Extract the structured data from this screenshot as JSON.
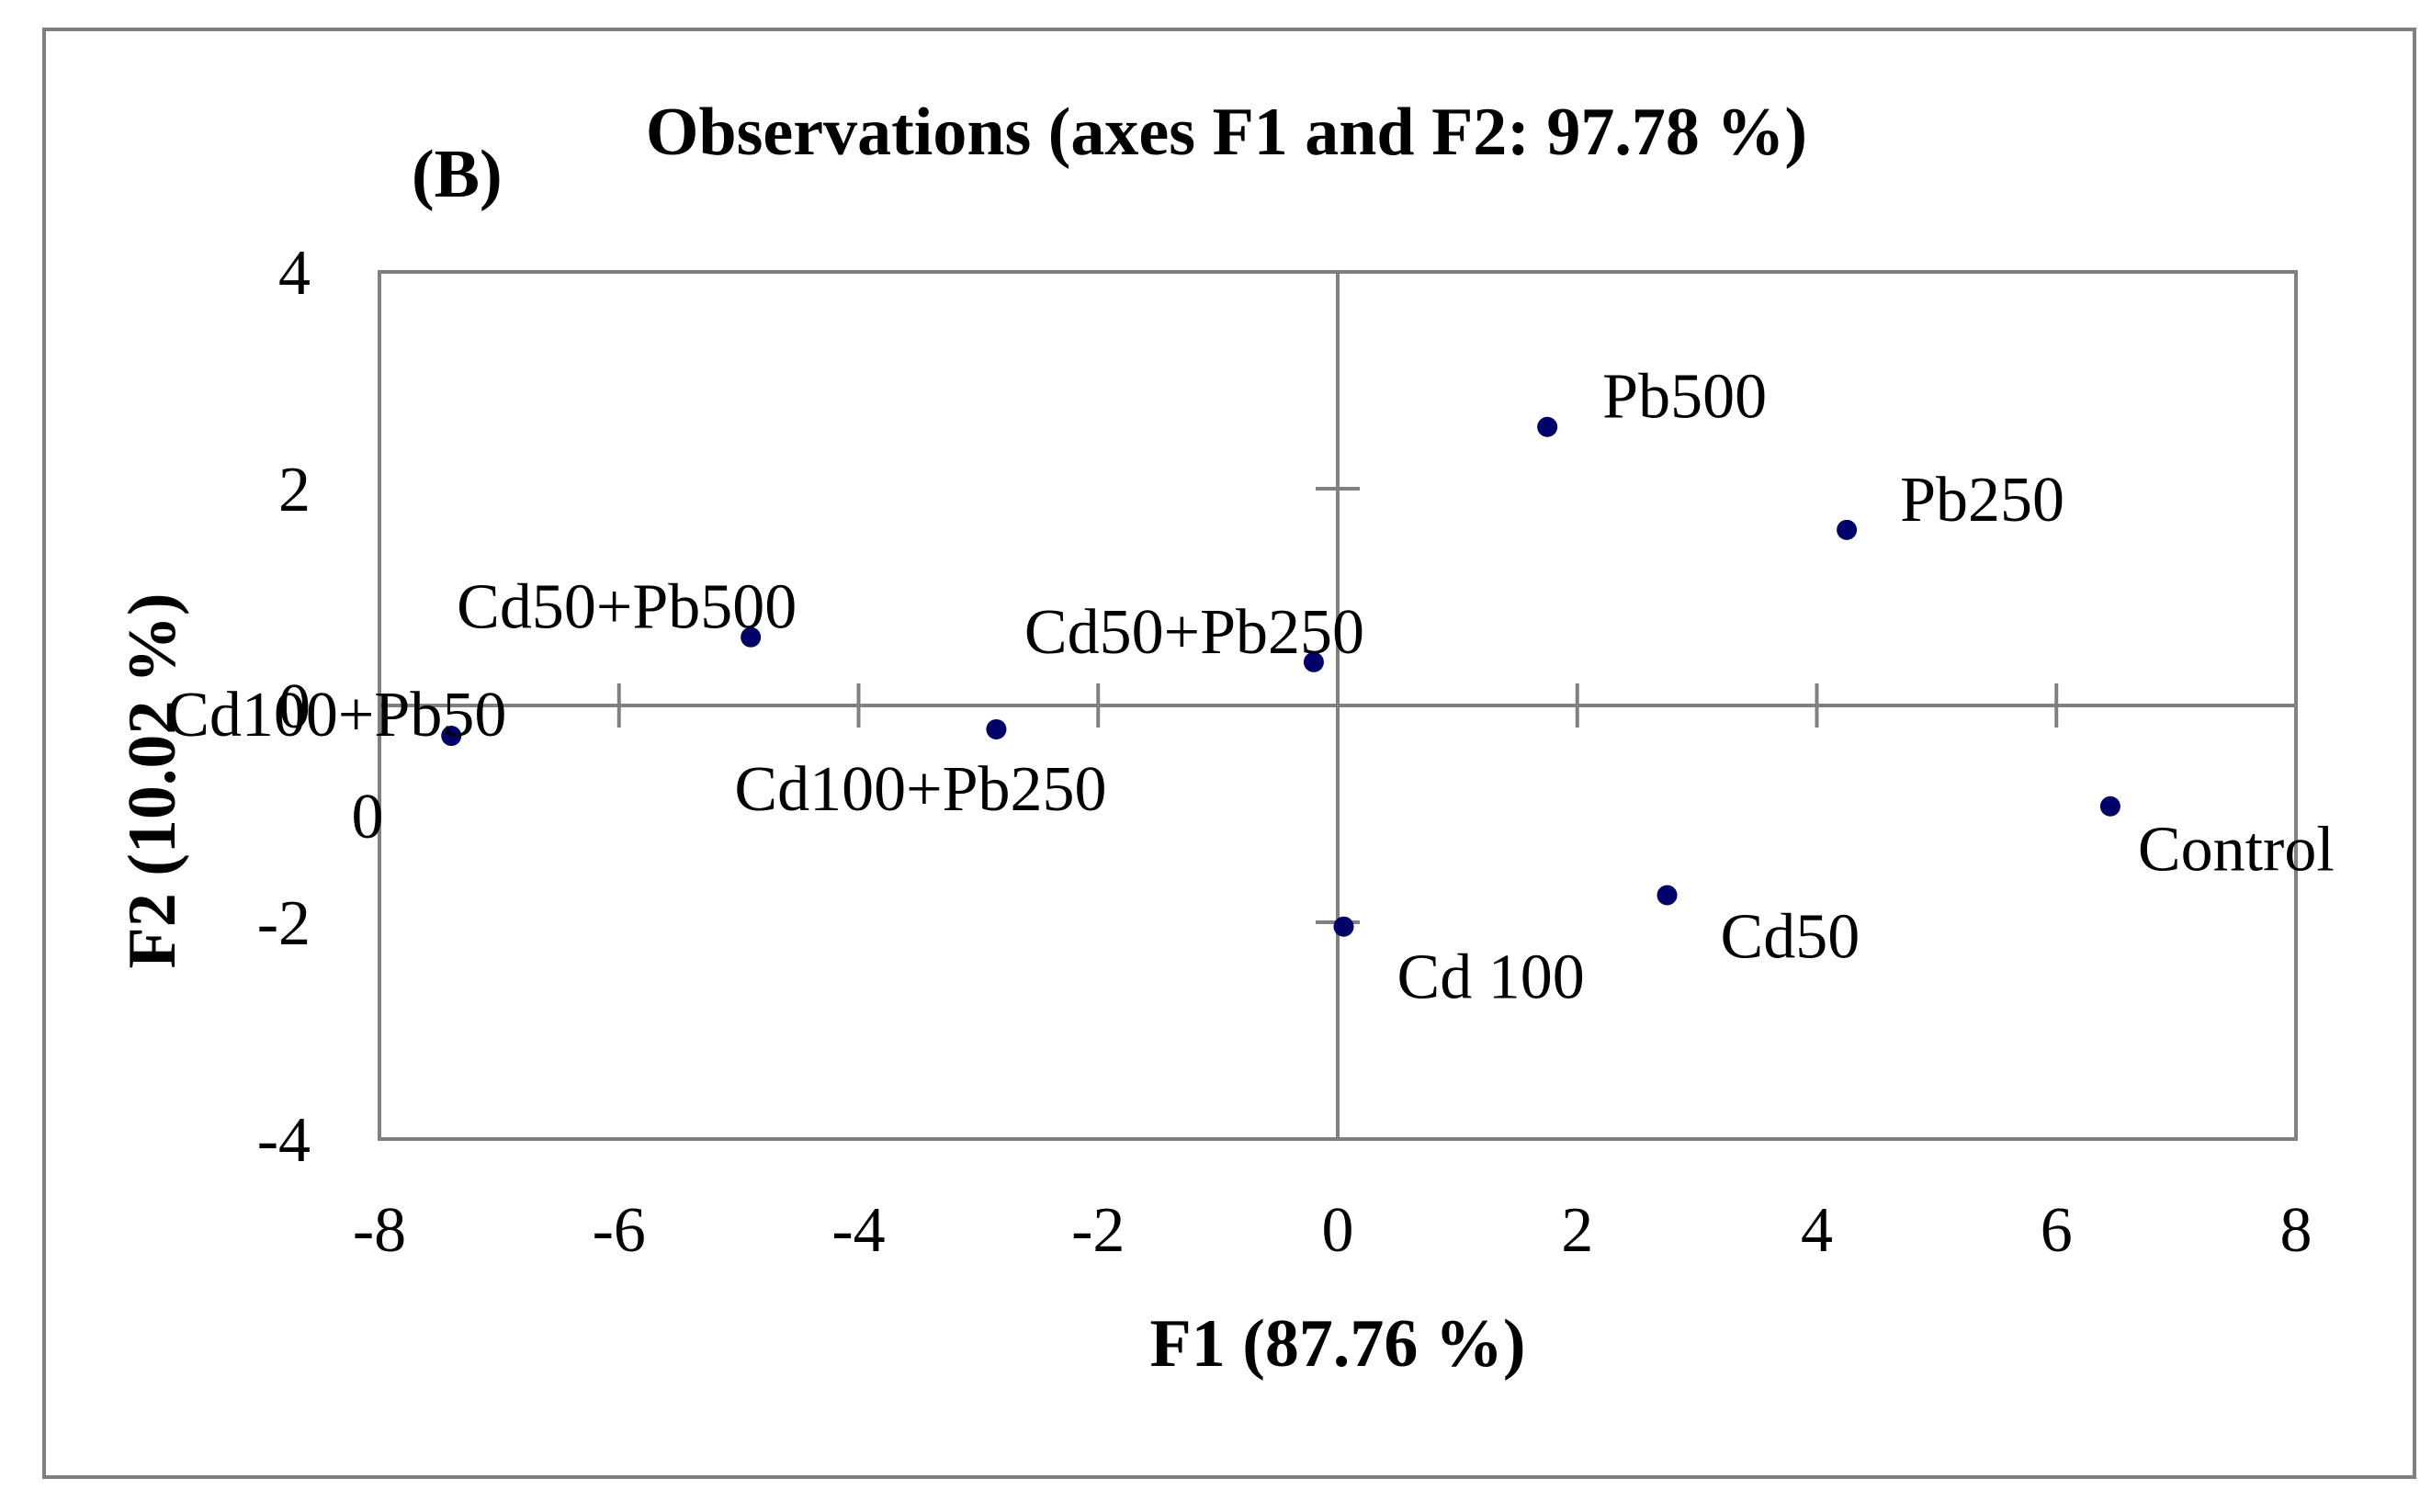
{
  "chart_data": {
    "type": "scatter",
    "panel_label": "(B)",
    "title": "Observations (axes F1 and F2: 97.78 %)",
    "xlabel": "F1 (87.76 %)",
    "ylabel": "F2 (10.02 %)",
    "xlim": [
      -8,
      8
    ],
    "ylim": [
      -4,
      4
    ],
    "x_ticks": [
      -8,
      -6,
      -4,
      -2,
      0,
      2,
      4,
      6,
      8
    ],
    "x_tick_labels": [
      "-8",
      "-6",
      "-4",
      "-2",
      "0",
      "2",
      "4",
      "6",
      "8"
    ],
    "y_ticks": [
      -4,
      -2,
      0,
      2,
      4
    ],
    "y_tick_labels": [
      "-4",
      "-2",
      "0",
      "2",
      "4"
    ],
    "extra_y_tick_label": "0",
    "grid": false,
    "legend": "none",
    "marker_color": "#00006b",
    "points": [
      {
        "label": "Cd100+Pb50",
        "x": -7.4,
        "y": -0.28
      },
      {
        "label": "Cd50+Pb500",
        "x": -4.9,
        "y": 0.63
      },
      {
        "label": "Cd100+Pb250",
        "x": -2.85,
        "y": -0.22
      },
      {
        "label": "Cd50+Pb250",
        "x": -0.2,
        "y": 0.4
      },
      {
        "label": "Cd 100",
        "x": 0.05,
        "y": -2.04
      },
      {
        "label": "Pb500",
        "x": 1.75,
        "y": 2.57
      },
      {
        "label": "Cd50",
        "x": 2.75,
        "y": -1.75
      },
      {
        "label": "Pb250",
        "x": 4.25,
        "y": 1.62
      },
      {
        "label": "Control",
        "x": 6.45,
        "y": -0.93
      }
    ]
  }
}
